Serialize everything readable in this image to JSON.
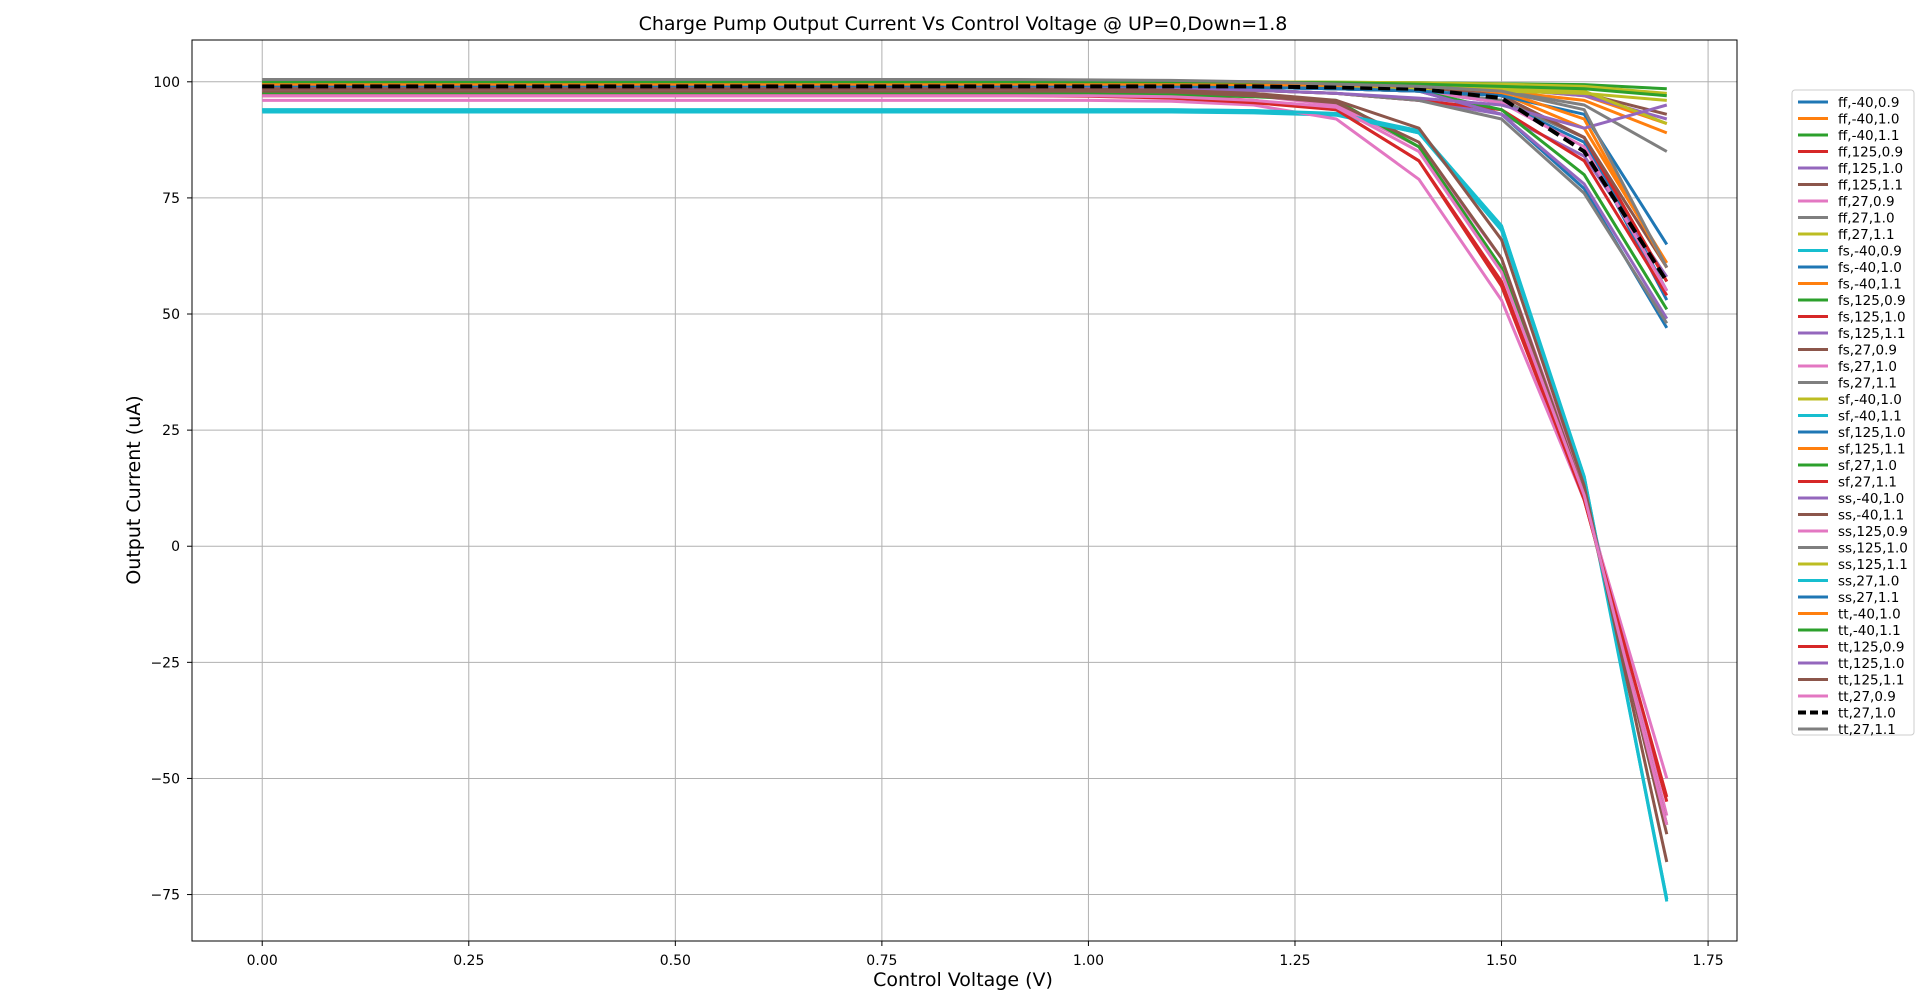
{
  "chart_data": {
    "type": "line",
    "title": "Charge Pump Output Current Vs Control Voltage @ UP=0,Down=1.8",
    "xlabel": "Control Voltage (V)",
    "ylabel": "Output Current (uA)",
    "xlim": [
      -0.085,
      1.785
    ],
    "ylim": [
      -85,
      109
    ],
    "xticks": [
      0.0,
      0.25,
      0.5,
      0.75,
      1.0,
      1.25,
      1.5,
      1.75
    ],
    "xtick_labels": [
      "0.00",
      "0.25",
      "0.50",
      "0.75",
      "1.00",
      "1.25",
      "1.50",
      "1.75"
    ],
    "yticks": [
      -75,
      -50,
      -25,
      0,
      25,
      50,
      75,
      100
    ],
    "ytick_labels": [
      "−75",
      "−50",
      "−25",
      "0",
      "25",
      "50",
      "75",
      "100"
    ],
    "grid": true,
    "legend_position": "right",
    "x": [
      0.0,
      0.1,
      0.2,
      0.3,
      0.4,
      0.5,
      0.6,
      0.7,
      0.8,
      0.9,
      1.0,
      1.1,
      1.2,
      1.3,
      1.4,
      1.5,
      1.6,
      1.7
    ],
    "series": [
      {
        "name": "ff,-40,0.9",
        "color": "#1f77b4",
        "dashed": false,
        "values": [
          99.0,
          99.0,
          99.0,
          99.0,
          99.0,
          99.0,
          99.0,
          99.0,
          99.0,
          99.0,
          99.0,
          98.9,
          98.8,
          98.5,
          98.0,
          96.0,
          88.0,
          55.0
        ]
      },
      {
        "name": "ff,-40,1.0",
        "color": "#ff7f0e",
        "dashed": false,
        "values": [
          99.5,
          99.5,
          99.5,
          99.5,
          99.5,
          99.5,
          99.5,
          99.5,
          99.5,
          99.5,
          99.5,
          99.5,
          99.4,
          99.3,
          99.0,
          98.5,
          97.0,
          91.0
        ]
      },
      {
        "name": "ff,-40,1.1",
        "color": "#2ca02c",
        "dashed": false,
        "values": [
          100.0,
          100.0,
          100.0,
          100.0,
          100.0,
          100.0,
          100.0,
          100.0,
          100.0,
          100.0,
          100.0,
          100.0,
          100.0,
          99.9,
          99.8,
          99.6,
          99.4,
          98.5
        ]
      },
      {
        "name": "ff,125,0.9",
        "color": "#d62728",
        "dashed": false,
        "values": [
          97.5,
          97.5,
          97.5,
          97.5,
          97.5,
          97.5,
          97.5,
          97.5,
          97.5,
          97.5,
          97.4,
          97.0,
          96.0,
          94.0,
          83.0,
          56.0,
          10.0,
          -55.0
        ]
      },
      {
        "name": "ff,125,1.0",
        "color": "#9467bd",
        "dashed": false,
        "values": [
          98.5,
          98.5,
          98.5,
          98.5,
          98.5,
          98.5,
          98.5,
          98.5,
          98.5,
          98.5,
          98.5,
          98.4,
          98.2,
          97.5,
          96.0,
          93.0,
          84.0,
          58.0
        ]
      },
      {
        "name": "ff,125,1.1",
        "color": "#8c564b",
        "dashed": false,
        "values": [
          99.5,
          99.5,
          99.5,
          99.5,
          99.5,
          99.5,
          99.5,
          99.5,
          99.5,
          99.5,
          99.5,
          99.5,
          99.4,
          99.3,
          99.0,
          98.5,
          97.5,
          93.0
        ]
      },
      {
        "name": "ff,27,0.9",
        "color": "#e377c2",
        "dashed": false,
        "values": [
          98.0,
          98.0,
          98.0,
          98.0,
          98.0,
          98.0,
          98.0,
          98.0,
          98.0,
          98.0,
          98.0,
          97.8,
          97.0,
          95.0,
          86.0,
          62.0,
          12.0,
          -58.0
        ]
      },
      {
        "name": "ff,27,1.0",
        "color": "#7f7f7f",
        "dashed": false,
        "values": [
          99.0,
          99.0,
          99.0,
          99.0,
          99.0,
          99.0,
          99.0,
          99.0,
          99.0,
          99.0,
          99.0,
          98.9,
          98.8,
          98.5,
          98.0,
          96.0,
          88.0,
          57.0
        ]
      },
      {
        "name": "ff,27,1.1",
        "color": "#bcbd22",
        "dashed": false,
        "values": [
          100.0,
          100.0,
          100.0,
          100.0,
          100.0,
          100.0,
          100.0,
          100.0,
          100.0,
          100.0,
          100.0,
          100.0,
          100.0,
          99.9,
          99.8,
          99.5,
          99.0,
          97.5
        ]
      },
      {
        "name": "fs,-40,0.9",
        "color": "#17becf",
        "dashed": false,
        "values": [
          94.0,
          94.0,
          94.0,
          94.0,
          94.0,
          94.0,
          94.0,
          94.0,
          94.0,
          94.0,
          94.0,
          94.0,
          93.8,
          93.0,
          89.0,
          69.0,
          14.0,
          -76.0
        ]
      },
      {
        "name": "fs,-40,1.0",
        "color": "#1f77b4",
        "dashed": false,
        "values": [
          99.0,
          99.0,
          99.0,
          99.0,
          99.0,
          99.0,
          99.0,
          99.0,
          99.0,
          99.0,
          99.0,
          98.9,
          98.8,
          98.5,
          98.0,
          95.5,
          87.0,
          53.0
        ]
      },
      {
        "name": "fs,-40,1.1",
        "color": "#ff7f0e",
        "dashed": false,
        "values": [
          99.5,
          99.5,
          99.5,
          99.5,
          99.5,
          99.5,
          99.5,
          99.5,
          99.5,
          99.5,
          99.5,
          99.5,
          99.4,
          99.3,
          99.0,
          98.0,
          96.0,
          89.0
        ]
      },
      {
        "name": "fs,125,0.9",
        "color": "#2ca02c",
        "dashed": false,
        "values": [
          97.5,
          97.5,
          97.5,
          97.5,
          97.5,
          97.5,
          97.5,
          97.5,
          97.5,
          97.5,
          97.4,
          97.2,
          96.8,
          96.0,
          86.0,
          60.0,
          11.0,
          -60.0
        ]
      },
      {
        "name": "fs,125,1.0",
        "color": "#d62728",
        "dashed": false,
        "values": [
          98.5,
          98.5,
          98.5,
          98.5,
          98.5,
          98.5,
          98.5,
          98.5,
          98.5,
          98.5,
          98.5,
          98.4,
          98.2,
          97.5,
          96.0,
          94.0,
          83.0,
          54.0
        ]
      },
      {
        "name": "fs,125,1.1",
        "color": "#9467bd",
        "dashed": false,
        "values": [
          99.5,
          99.5,
          99.5,
          99.5,
          99.5,
          99.5,
          99.5,
          99.5,
          99.5,
          99.5,
          99.5,
          99.5,
          99.4,
          99.3,
          99.0,
          98.5,
          97.0,
          92.0
        ]
      },
      {
        "name": "fs,27,0.9",
        "color": "#8c564b",
        "dashed": false,
        "values": [
          98.0,
          98.0,
          98.0,
          98.0,
          98.0,
          98.0,
          98.0,
          98.0,
          98.0,
          98.0,
          98.0,
          97.8,
          97.0,
          95.5,
          87.0,
          62.0,
          11.0,
          -62.0
        ]
      },
      {
        "name": "fs,27,1.0",
        "color": "#e377c2",
        "dashed": false,
        "values": [
          99.0,
          99.0,
          99.0,
          99.0,
          99.0,
          99.0,
          99.0,
          99.0,
          99.0,
          99.0,
          99.0,
          98.9,
          98.8,
          98.5,
          98.0,
          95.5,
          86.0,
          55.0
        ]
      },
      {
        "name": "fs,27,1.1",
        "color": "#7f7f7f",
        "dashed": false,
        "values": [
          100.0,
          100.0,
          100.0,
          100.0,
          100.0,
          100.0,
          100.0,
          100.0,
          100.0,
          99.9,
          99.8,
          99.7,
          99.5,
          99.2,
          99.0,
          98.0,
          95.0,
          85.0
        ]
      },
      {
        "name": "sf,-40,1.0",
        "color": "#bcbd22",
        "dashed": false,
        "values": [
          99.0,
          99.0,
          99.0,
          99.0,
          99.0,
          99.0,
          99.0,
          99.0,
          99.0,
          99.0,
          99.0,
          99.0,
          98.9,
          98.8,
          98.5,
          98.0,
          97.5,
          96.0
        ]
      },
      {
        "name": "sf,-40,1.1",
        "color": "#17becf",
        "dashed": false,
        "values": [
          93.5,
          93.5,
          93.5,
          93.5,
          93.5,
          93.5,
          93.5,
          93.5,
          93.5,
          93.5,
          93.5,
          93.5,
          93.3,
          92.8,
          89.0,
          68.0,
          15.0,
          -76.5
        ]
      },
      {
        "name": "sf,125,1.0",
        "color": "#1f77b4",
        "dashed": false,
        "values": [
          99.0,
          99.0,
          99.0,
          99.0,
          99.0,
          99.0,
          99.0,
          99.0,
          99.0,
          99.0,
          99.0,
          98.9,
          98.8,
          98.5,
          98.0,
          93.0,
          77.0,
          47.0
        ]
      },
      {
        "name": "sf,125,1.1",
        "color": "#ff7f0e",
        "dashed": false,
        "values": [
          99.5,
          99.5,
          99.5,
          99.5,
          99.5,
          99.5,
          99.5,
          99.5,
          99.5,
          99.5,
          99.5,
          99.5,
          99.4,
          99.3,
          99.0,
          97.5,
          90.0,
          61.0
        ]
      },
      {
        "name": "sf,27,1.0",
        "color": "#2ca02c",
        "dashed": false,
        "values": [
          99.0,
          99.0,
          99.0,
          99.0,
          99.0,
          99.0,
          99.0,
          99.0,
          99.0,
          99.0,
          99.0,
          98.9,
          98.8,
          98.5,
          98.0,
          94.0,
          80.0,
          51.0
        ]
      },
      {
        "name": "sf,27,1.1",
        "color": "#d62728",
        "dashed": false,
        "values": [
          99.5,
          99.5,
          99.5,
          99.5,
          99.5,
          99.5,
          99.5,
          99.5,
          99.5,
          99.5,
          99.5,
          99.5,
          99.4,
          99.3,
          99.0,
          97.0,
          88.0,
          57.0
        ]
      },
      {
        "name": "ss,-40,1.0",
        "color": "#9467bd",
        "dashed": false,
        "values": [
          99.0,
          99.0,
          99.0,
          99.0,
          99.0,
          99.0,
          99.0,
          99.0,
          99.0,
          99.0,
          99.0,
          98.9,
          98.8,
          98.5,
          98.0,
          93.0,
          78.0,
          49.0
        ]
      },
      {
        "name": "ss,-40,1.1",
        "color": "#8c564b",
        "dashed": false,
        "values": [
          99.5,
          99.5,
          99.5,
          99.5,
          99.5,
          99.5,
          99.5,
          99.5,
          99.5,
          99.5,
          99.5,
          99.5,
          99.4,
          99.3,
          99.0,
          97.0,
          88.0,
          60.0
        ]
      },
      {
        "name": "ss,125,0.9",
        "color": "#e377c2",
        "dashed": false,
        "values": [
          96.0,
          96.0,
          96.0,
          96.0,
          96.0,
          96.0,
          96.0,
          96.0,
          96.0,
          96.0,
          96.0,
          95.8,
          95.0,
          92.0,
          79.0,
          53.0,
          10.0,
          -50.0
        ]
      },
      {
        "name": "ss,125,1.0",
        "color": "#7f7f7f",
        "dashed": false,
        "values": [
          98.5,
          98.5,
          98.5,
          98.5,
          98.5,
          98.5,
          98.5,
          98.5,
          98.5,
          98.5,
          98.5,
          98.4,
          98.2,
          97.5,
          96.0,
          92.0,
          76.0,
          48.0
        ]
      },
      {
        "name": "ss,125,1.1",
        "color": "#bcbd22",
        "dashed": false,
        "values": [
          99.5,
          99.5,
          99.5,
          99.5,
          99.5,
          99.5,
          99.5,
          99.5,
          99.5,
          99.5,
          99.5,
          99.5,
          99.4,
          99.3,
          99.0,
          98.5,
          98.0,
          91.0
        ]
      },
      {
        "name": "ss,27,1.0",
        "color": "#17becf",
        "dashed": false,
        "values": [
          94.0,
          94.0,
          94.0,
          94.0,
          94.0,
          94.0,
          94.0,
          94.0,
          94.0,
          94.0,
          94.0,
          94.0,
          93.8,
          93.2,
          89.5,
          69.0,
          15.0,
          -76.0
        ]
      },
      {
        "name": "ss,27,1.1",
        "color": "#1f77b4",
        "dashed": false,
        "values": [
          99.0,
          99.0,
          99.0,
          99.0,
          99.0,
          99.0,
          99.0,
          99.0,
          99.0,
          99.0,
          99.0,
          98.9,
          98.8,
          98.5,
          98.0,
          97.0,
          93.0,
          65.0
        ]
      },
      {
        "name": "tt,-40,1.0",
        "color": "#ff7f0e",
        "dashed": false,
        "values": [
          99.5,
          99.5,
          99.5,
          99.5,
          99.5,
          99.5,
          99.5,
          99.5,
          99.5,
          99.5,
          99.5,
          99.5,
          99.4,
          99.3,
          99.0,
          98.0,
          92.0,
          60.0
        ]
      },
      {
        "name": "tt,-40,1.1",
        "color": "#2ca02c",
        "dashed": false,
        "values": [
          100.0,
          100.0,
          100.0,
          100.0,
          100.0,
          100.0,
          100.0,
          100.0,
          100.0,
          100.0,
          100.0,
          100.0,
          99.9,
          99.8,
          99.5,
          99.0,
          98.5,
          97.0
        ]
      },
      {
        "name": "tt,125,0.9",
        "color": "#d62728",
        "dashed": false,
        "values": [
          97.0,
          97.0,
          97.0,
          97.0,
          97.0,
          97.0,
          97.0,
          97.0,
          97.0,
          97.0,
          96.9,
          96.5,
          95.5,
          94.0,
          83.0,
          57.0,
          10.0,
          -54.0
        ]
      },
      {
        "name": "tt,125,1.0",
        "color": "#9467bd",
        "dashed": false,
        "values": [
          98.5,
          98.5,
          98.5,
          98.5,
          98.5,
          98.5,
          98.5,
          98.5,
          98.5,
          98.5,
          98.5,
          98.4,
          98.2,
          97.5,
          96.5,
          95.0,
          90.0,
          95.0
        ]
      },
      {
        "name": "tt,125,1.1",
        "color": "#8c564b",
        "dashed": false,
        "values": [
          98.5,
          98.5,
          98.5,
          98.5,
          98.5,
          98.5,
          98.5,
          98.5,
          98.5,
          98.5,
          98.4,
          98.2,
          97.5,
          96.0,
          90.0,
          66.0,
          13.0,
          -68.0
        ]
      },
      {
        "name": "tt,27,0.9",
        "color": "#e377c2",
        "dashed": false,
        "values": [
          97.0,
          97.0,
          97.0,
          97.0,
          97.0,
          97.0,
          97.0,
          97.0,
          97.0,
          97.0,
          97.0,
          96.8,
          96.0,
          94.5,
          85.0,
          59.0,
          11.0,
          -60.0
        ]
      },
      {
        "name": "tt,27,1.0",
        "color": "#000000",
        "dashed": true,
        "values": [
          99.0,
          99.0,
          99.0,
          99.0,
          99.0,
          99.0,
          99.0,
          99.0,
          99.0,
          99.0,
          99.0,
          99.0,
          99.0,
          98.8,
          98.5,
          96.5,
          85.0,
          57.0
        ]
      },
      {
        "name": "tt,27,1.1",
        "color": "#7f7f7f",
        "dashed": false,
        "values": [
          100.5,
          100.5,
          100.5,
          100.5,
          100.5,
          100.5,
          100.5,
          100.5,
          100.5,
          100.5,
          100.4,
          100.3,
          100.0,
          99.5,
          99.0,
          98.0,
          94.0,
          60.0
        ]
      }
    ]
  }
}
